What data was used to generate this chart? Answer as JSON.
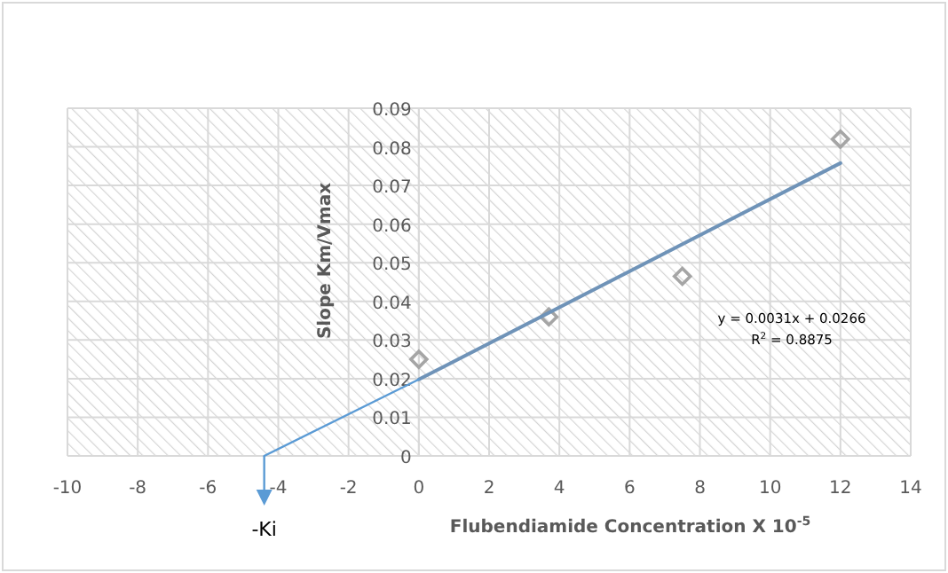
{
  "chart_data": {
    "type": "scatter",
    "xlabel": "Flubendiamide Concentration X 10$^{-5}$",
    "ylabel": "Slope Km/Vmax",
    "series": [
      {
        "color": "#a5a5a5",
        "x": [
          0,
          3.7,
          7.5,
          12
        ],
        "values": [
          0.025,
          0.036,
          0.0465,
          0.082
        ],
        "marker": "diamond"
      },
      {
        "type": "line",
        "color": "#6f93b8",
        "x": [
          0,
          12
        ],
        "values": [
          0.0198,
          0.0758
        ],
        "line_style": "solid"
      },
      {
        "type": "line",
        "color": "#5b9bd5",
        "x": [
          -4.4,
          0
        ],
        "values": [
          0,
          0.0198
        ],
        "line_style": "solid"
      }
    ],
    "annotations": [
      "-Ki",
      "y = 0.0031x + 0.0266",
      "R$^{2}$ = 0.8875"
    ],
    "xlim": [
      -10,
      14
    ],
    "xticks": [
      -10,
      -8,
      -6,
      -4,
      -2,
      0,
      2,
      4,
      6,
      8,
      10,
      12,
      14
    ],
    "ylim": [
      0,
      0.09
    ],
    "yticks": [
      0,
      0.01,
      0.02,
      0.03,
      0.04,
      0.05,
      0.06,
      0.07,
      0.08,
      0.09
    ],
    "grid": true
  }
}
